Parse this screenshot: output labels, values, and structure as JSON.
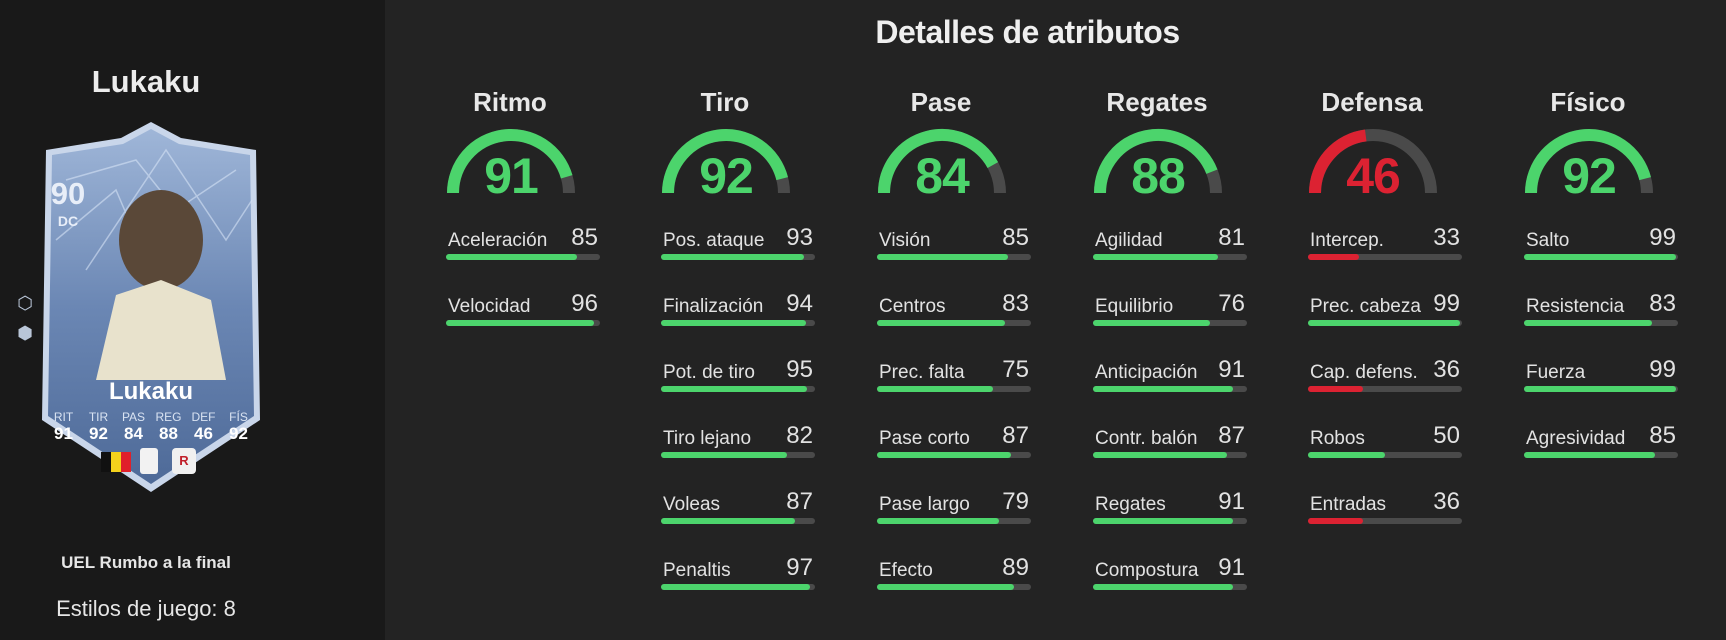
{
  "player": {
    "name": "Lukaku",
    "card_name": "Lukaku",
    "rating": "90",
    "position": "DC",
    "version": "UEL Rumbo a la final",
    "playstyles": "Estilos de juego: 8",
    "club_badge": "R",
    "card_stats": [
      {
        "label": "RIT",
        "value": "91"
      },
      {
        "label": "TIR",
        "value": "92"
      },
      {
        "label": "PAS",
        "value": "84"
      },
      {
        "label": "REG",
        "value": "88"
      },
      {
        "label": "DEF",
        "value": "46"
      },
      {
        "label": "FÍS",
        "value": "92"
      }
    ],
    "flag_colors": [
      "#111111",
      "#f4d21c",
      "#e0202a"
    ],
    "side_icons": [
      "plus-chevron-icon",
      "playstyle-icon"
    ]
  },
  "title": "Detalles de atributos",
  "colors": {
    "green": "#4cd46c",
    "red": "#dc2232",
    "track": "#4a4a4a"
  },
  "columns": [
    {
      "title": "Ritmo",
      "value": 91,
      "color": "#4cd46c",
      "stats": [
        {
          "label": "Aceleración",
          "value": 85
        },
        {
          "label": "Velocidad",
          "value": 96
        }
      ]
    },
    {
      "title": "Tiro",
      "value": 92,
      "color": "#4cd46c",
      "stats": [
        {
          "label": "Pos. ataque",
          "value": 93
        },
        {
          "label": "Finalización",
          "value": 94
        },
        {
          "label": "Pot. de tiro",
          "value": 95
        },
        {
          "label": "Tiro lejano",
          "value": 82
        },
        {
          "label": "Voleas",
          "value": 87
        },
        {
          "label": "Penaltis",
          "value": 97
        }
      ]
    },
    {
      "title": "Pase",
      "value": 84,
      "color": "#4cd46c",
      "stats": [
        {
          "label": "Visión",
          "value": 85
        },
        {
          "label": "Centros",
          "value": 83
        },
        {
          "label": "Prec. falta",
          "value": 75
        },
        {
          "label": "Pase corto",
          "value": 87
        },
        {
          "label": "Pase largo",
          "value": 79
        },
        {
          "label": "Efecto",
          "value": 89
        }
      ]
    },
    {
      "title": "Regates",
      "value": 88,
      "color": "#4cd46c",
      "stats": [
        {
          "label": "Agilidad",
          "value": 81
        },
        {
          "label": "Equilibrio",
          "value": 76
        },
        {
          "label": "Anticipación",
          "value": 91
        },
        {
          "label": "Contr. balón",
          "value": 87
        },
        {
          "label": "Regates",
          "value": 91
        },
        {
          "label": "Compostura",
          "value": 91
        }
      ]
    },
    {
      "title": "Defensa",
      "value": 46,
      "color": "#dc2232",
      "stats": [
        {
          "label": "Intercep.",
          "value": 33
        },
        {
          "label": "Prec. cabeza",
          "value": 99
        },
        {
          "label": "Cap. defens.",
          "value": 36
        },
        {
          "label": "Robos",
          "value": 50
        },
        {
          "label": "Entradas",
          "value": 36
        }
      ]
    },
    {
      "title": "Físico",
      "value": 92,
      "color": "#4cd46c",
      "stats": [
        {
          "label": "Salto",
          "value": 99
        },
        {
          "label": "Resistencia",
          "value": 83
        },
        {
          "label": "Fuerza",
          "value": 99
        },
        {
          "label": "Agresividad",
          "value": 85
        }
      ]
    }
  ]
}
